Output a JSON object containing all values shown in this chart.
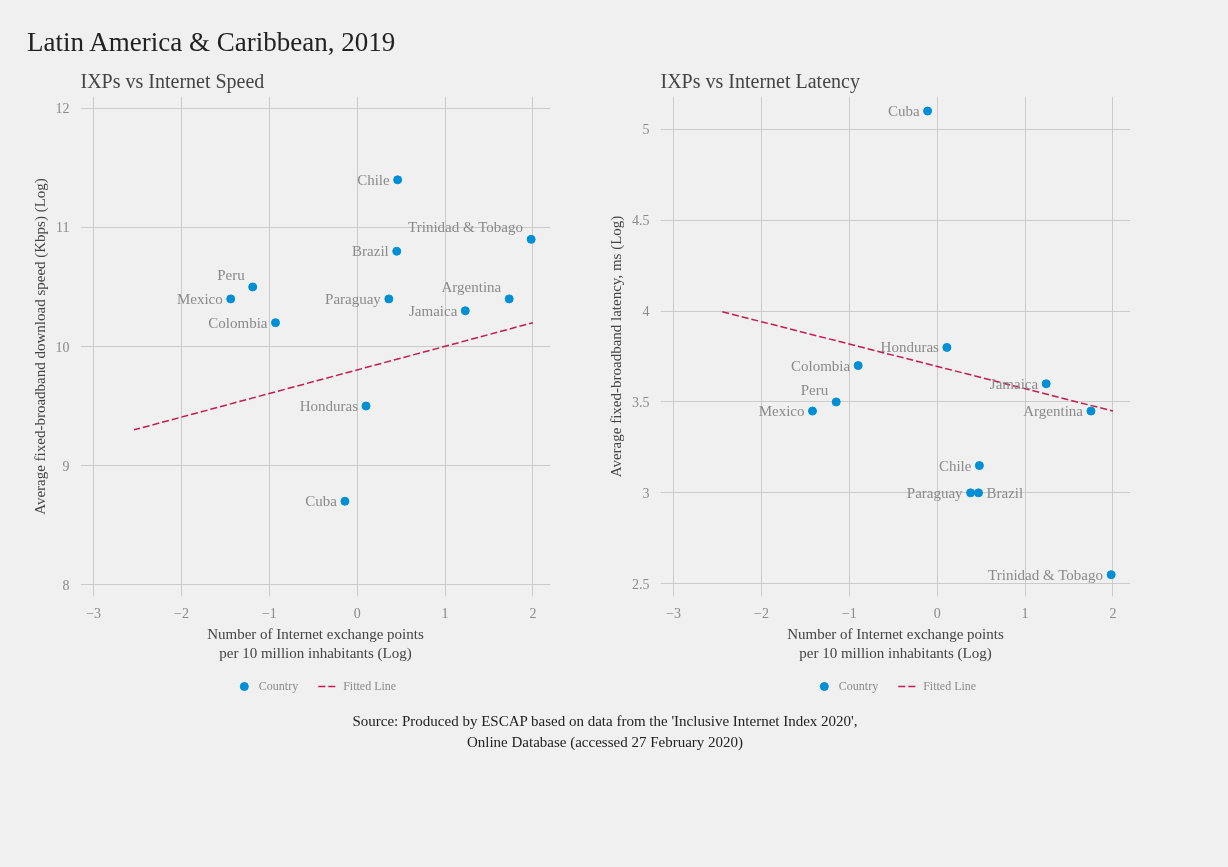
{
  "chart_data": [
    {
      "type": "other",
      "title": "Latin America & Caribbean, 2019"
    },
    {
      "type": "scatter",
      "title": "IXPs vs Internet Speed",
      "xlabel": "Number of Internet exchange points\nper 10 million inhabitants (Log)",
      "ylabel": "Average fixed-broadband download speed (Kbps) (Log)",
      "xlim": [
        -3.15,
        2.2
      ],
      "ylim": [
        7.9,
        12.1
      ],
      "xticks": [
        -3,
        -2,
        -1,
        0,
        1,
        2
      ],
      "yticks": [
        8,
        9,
        10,
        11,
        12
      ],
      "grid": true,
      "legend": "bottom",
      "series": [
        {
          "name": "Country",
          "type": "scatter",
          "marker": "circle",
          "color": "#008fd5",
          "x": [
            0.46,
            1.98,
            0.45,
            -1.19,
            -1.44,
            0.36,
            1.73,
            1.23,
            -0.93,
            0.1,
            -0.14
          ],
          "values": [
            11.4,
            10.9,
            10.8,
            10.5,
            10.4,
            10.4,
            10.4,
            10.3,
            10.2,
            9.5,
            8.7
          ]
        },
        {
          "name": "Fitted Line",
          "type": "line",
          "color": "#c51b4f",
          "line_style": "dashed",
          "x": [
            -2.54,
            2.0
          ],
          "values": [
            9.3,
            10.2
          ]
        }
      ],
      "annotations": [
        {
          "text": "Chile",
          "x": 0.46,
          "y": 11.4
        },
        {
          "text": "Trinidad & Tobago",
          "x": 1.98,
          "y": 10.9
        },
        {
          "text": "Brazil",
          "x": 0.45,
          "y": 10.8
        },
        {
          "text": "Peru",
          "x": -1.19,
          "y": 10.5
        },
        {
          "text": "Mexico",
          "x": -1.44,
          "y": 10.4
        },
        {
          "text": "Paraguay",
          "x": 0.36,
          "y": 10.4
        },
        {
          "text": "Argentina",
          "x": 1.73,
          "y": 10.4
        },
        {
          "text": "Jamaica",
          "x": 1.23,
          "y": 10.3
        },
        {
          "text": "Colombia",
          "x": -0.93,
          "y": 10.2
        },
        {
          "text": "Honduras",
          "x": 0.1,
          "y": 9.5
        },
        {
          "text": "Cuba",
          "x": -0.14,
          "y": 8.7
        }
      ]
    },
    {
      "type": "scatter",
      "title": "IXPs vs Internet Latency",
      "xlabel": "Number of Internet exchange points\nper 10 million inhabitants (Log)",
      "ylabel": "Average fixed-broadband latency, ms (Log)",
      "xlim": [
        -3.15,
        2.2
      ],
      "ylim": [
        2.43,
        5.18
      ],
      "xticks": [
        -3,
        -2,
        -1,
        0,
        1,
        2
      ],
      "yticks": [
        2.5,
        3,
        3.5,
        4,
        4.5,
        5
      ],
      "grid": true,
      "legend": "bottom",
      "series": [
        {
          "name": "Country",
          "type": "scatter",
          "marker": "circle",
          "color": "#008fd5",
          "x": [
            -0.11,
            0.11,
            -0.9,
            1.24,
            -1.15,
            -1.42,
            1.75,
            0.48,
            0.38,
            0.47,
            1.98
          ],
          "values": [
            5.1,
            3.8,
            3.7,
            3.6,
            3.5,
            3.45,
            3.45,
            3.15,
            3.0,
            3.0,
            2.55
          ]
        },
        {
          "name": "Fitted Line",
          "type": "line",
          "color": "#c51b4f",
          "line_style": "dashed",
          "x": [
            -2.48,
            2.0
          ],
          "values": [
            4.0,
            3.45
          ]
        }
      ],
      "annotations": [
        {
          "text": "Cuba",
          "x": -0.11,
          "y": 5.1
        },
        {
          "text": "Honduras",
          "x": 0.11,
          "y": 3.8
        },
        {
          "text": "Colombia",
          "x": -0.9,
          "y": 3.7
        },
        {
          "text": "Jamaica",
          "x": 1.24,
          "y": 3.6
        },
        {
          "text": "Peru",
          "x": -1.15,
          "y": 3.5
        },
        {
          "text": "Mexico",
          "x": -1.42,
          "y": 3.45
        },
        {
          "text": "Argentina",
          "x": 1.75,
          "y": 3.45
        },
        {
          "text": "Chile",
          "x": 0.48,
          "y": 3.15
        },
        {
          "text": "Paraguay",
          "x": 0.38,
          "y": 3.0
        },
        {
          "text": "Brazil",
          "x": 0.47,
          "y": 3.0
        },
        {
          "text": "Trinidad & Tobago",
          "x": 1.98,
          "y": 2.55
        }
      ]
    },
    {
      "type": "other",
      "annotations": [
        "Source: Produced by ESCAP based on data from the 'Inclusive Internet Index 2020',\nOnline Database (accessed 27 February 2020)"
      ]
    }
  ]
}
